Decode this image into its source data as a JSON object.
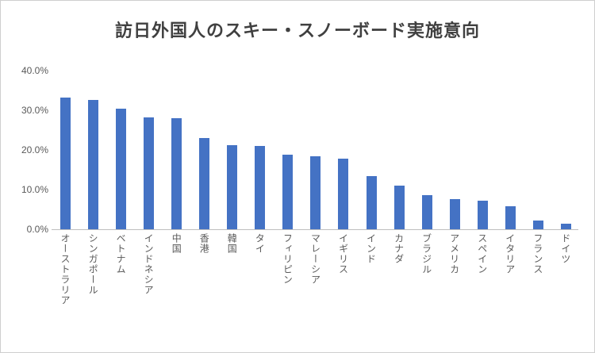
{
  "title": "訪日外国人のスキー・スノーボード実施意向",
  "colors": {
    "bar": "#4472C4",
    "axis_line": "#bfbfbf",
    "tick_text": "#595959",
    "title_text": "#404040",
    "frame_border": "#cfcfcf"
  },
  "chart_data": {
    "type": "bar",
    "title": "訪日外国人のスキー・スノーボード実施意向",
    "xlabel": "",
    "ylabel": "",
    "ylim": [
      0,
      40
    ],
    "grid": false,
    "legend": "none",
    "y_ticks": [
      "0.0%",
      "10.0%",
      "20.0%",
      "30.0%",
      "40.0%"
    ],
    "categories": [
      "オーストラリア",
      "シンガポール",
      "ベトナム",
      "インドネシア",
      "中国",
      "香港",
      "韓国",
      "タイ",
      "フィリピン",
      "マレーシア",
      "イギリス",
      "インド",
      "カナダ",
      "ブラジル",
      "アメリカ",
      "スペイン",
      "イタリア",
      "フランス",
      "ドイツ"
    ],
    "values": [
      33.3,
      32.7,
      30.5,
      28.2,
      28.0,
      23.0,
      21.3,
      21.0,
      18.8,
      18.5,
      17.8,
      13.4,
      11.0,
      8.6,
      7.6,
      7.3,
      5.8,
      2.2,
      1.5
    ]
  }
}
